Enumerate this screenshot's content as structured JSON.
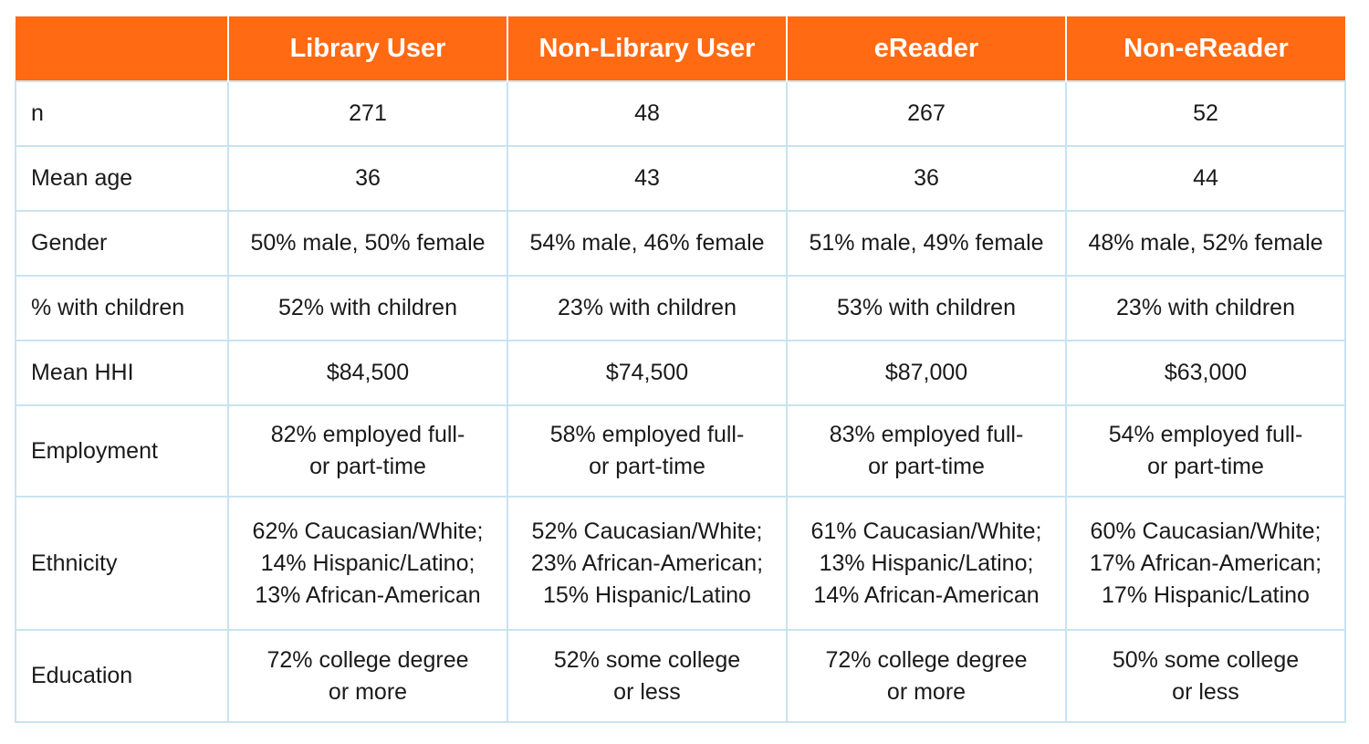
{
  "header": {
    "corner": "",
    "columns": [
      "Library User",
      "Non-Library User",
      "eReader",
      "Non-eReader"
    ]
  },
  "rows": [
    {
      "label": "n",
      "cells": [
        [
          "271"
        ],
        [
          "48"
        ],
        [
          "267"
        ],
        [
          "52"
        ]
      ]
    },
    {
      "label": "Mean age",
      "cells": [
        [
          "36"
        ],
        [
          "43"
        ],
        [
          "36"
        ],
        [
          "44"
        ]
      ]
    },
    {
      "label": "Gender",
      "cells": [
        [
          "50% male, 50% female"
        ],
        [
          "54% male, 46% female"
        ],
        [
          "51% male, 49% female"
        ],
        [
          "48% male, 52% female"
        ]
      ]
    },
    {
      "label": "% with children",
      "cells": [
        [
          "52% with children"
        ],
        [
          "23% with children"
        ],
        [
          "53% with children"
        ],
        [
          "23% with children"
        ]
      ]
    },
    {
      "label": "Mean HHI",
      "cells": [
        [
          "$84,500"
        ],
        [
          "$74,500"
        ],
        [
          "$87,000"
        ],
        [
          "$63,000"
        ]
      ]
    },
    {
      "label": "Employment",
      "cells": [
        [
          "82% employed full-",
          "or part-time"
        ],
        [
          "58% employed full-",
          "or part-time"
        ],
        [
          "83% employed full-",
          "or part-time"
        ],
        [
          "54% employed full-",
          "or part-time"
        ]
      ]
    },
    {
      "label": "Ethnicity",
      "cells": [
        [
          "62% Caucasian/White;",
          "14% Hispanic/Latino;",
          "13% African-American"
        ],
        [
          "52% Caucasian/White;",
          "23% African-American;",
          "15% Hispanic/Latino"
        ],
        [
          "61% Caucasian/White;",
          "13% Hispanic/Latino;",
          "14% African-American"
        ],
        [
          "60% Caucasian/White;",
          "17% African-American;",
          "17% Hispanic/Latino"
        ]
      ]
    },
    {
      "label": "Education",
      "cells": [
        [
          "72% college degree",
          "or more"
        ],
        [
          "52% some college",
          "or less"
        ],
        [
          "72% college degree",
          "or more"
        ],
        [
          "50% some college",
          "or less"
        ]
      ]
    }
  ]
}
